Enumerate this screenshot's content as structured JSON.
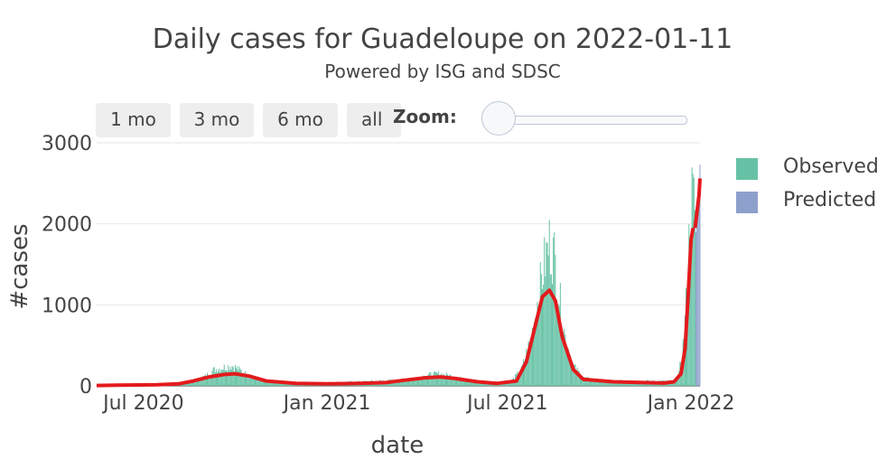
{
  "title": "Daily cases for Guadeloupe on 2022-01-11",
  "subtitle": "Powered by ISG and SDSC",
  "range_selector": {
    "buttons": [
      "1 mo",
      "3 mo",
      "6 mo",
      "all"
    ],
    "zoom_label": "Zoom:"
  },
  "legend": [
    {
      "label": "Observed",
      "color": "#66c2a5"
    },
    {
      "label": "Predicted",
      "color": "#8da0cb"
    }
  ],
  "chart_data": {
    "type": "bar",
    "xlabel": "date",
    "ylabel": "#cases",
    "x_range": [
      "2020-05-15",
      "2022-01-10"
    ],
    "ylim": [
      0,
      3000
    ],
    "yticks": [
      0,
      1000,
      2000,
      3000
    ],
    "xticks": [
      {
        "date": "2020-07-01",
        "label": "Jul 2020"
      },
      {
        "date": "2021-01-01",
        "label": "Jan 2021"
      },
      {
        "date": "2021-07-01",
        "label": "Jul 2021"
      },
      {
        "date": "2022-01-01",
        "label": "Jan 2022"
      }
    ],
    "grid": true,
    "legend_position": "right",
    "colors": {
      "observed": "#66c2a5",
      "predicted": "#8da0cb",
      "smoothed_line": "#e31a1c"
    },
    "observed_anchors": [
      [
        "2020-05-15",
        5
      ],
      [
        "2020-07-01",
        10
      ],
      [
        "2020-08-01",
        30
      ],
      [
        "2020-08-20",
        60
      ],
      [
        "2020-09-01",
        120
      ],
      [
        "2020-09-10",
        200
      ],
      [
        "2020-09-20",
        230
      ],
      [
        "2020-09-28",
        250
      ],
      [
        "2020-10-05",
        200
      ],
      [
        "2020-10-15",
        120
      ],
      [
        "2020-11-01",
        60
      ],
      [
        "2020-12-01",
        40
      ],
      [
        "2021-01-01",
        40
      ],
      [
        "2021-02-01",
        50
      ],
      [
        "2021-02-20",
        60
      ],
      [
        "2021-03-15",
        70
      ],
      [
        "2021-04-01",
        100
      ],
      [
        "2021-04-15",
        140
      ],
      [
        "2021-04-25",
        150
      ],
      [
        "2021-05-10",
        110
      ],
      [
        "2021-05-25",
        60
      ],
      [
        "2021-06-15",
        40
      ],
      [
        "2021-07-05",
        60
      ],
      [
        "2021-07-15",
        200
      ],
      [
        "2021-07-25",
        600
      ],
      [
        "2021-08-01",
        1100
      ],
      [
        "2021-08-07",
        1500
      ],
      [
        "2021-08-12",
        1750
      ],
      [
        "2021-08-17",
        1600
      ],
      [
        "2021-08-22",
        1100
      ],
      [
        "2021-08-28",
        600
      ],
      [
        "2021-09-05",
        250
      ],
      [
        "2021-09-15",
        100
      ],
      [
        "2021-10-01",
        60
      ],
      [
        "2021-11-15",
        60
      ],
      [
        "2021-12-15",
        60
      ],
      [
        "2021-12-20",
        150
      ],
      [
        "2021-12-25",
        600
      ],
      [
        "2021-12-28",
        1200
      ],
      [
        "2021-12-31",
        2000
      ],
      [
        "2022-01-02",
        2300
      ],
      [
        "2022-01-05",
        2200
      ]
    ],
    "predicted": [
      [
        "2022-01-06",
        1900
      ],
      [
        "2022-01-07",
        2100
      ],
      [
        "2022-01-08",
        2300
      ],
      [
        "2022-01-09",
        2500
      ],
      [
        "2022-01-10",
        2730
      ]
    ],
    "smoothed": [
      [
        "2020-05-15",
        5
      ],
      [
        "2020-06-15",
        10
      ],
      [
        "2020-07-15",
        15
      ],
      [
        "2020-08-05",
        25
      ],
      [
        "2020-08-20",
        60
      ],
      [
        "2020-09-05",
        110
      ],
      [
        "2020-09-20",
        140
      ],
      [
        "2020-10-01",
        150
      ],
      [
        "2020-10-15",
        120
      ],
      [
        "2020-11-01",
        60
      ],
      [
        "2020-12-01",
        30
      ],
      [
        "2021-01-01",
        25
      ],
      [
        "2021-02-01",
        30
      ],
      [
        "2021-03-01",
        40
      ],
      [
        "2021-03-20",
        70
      ],
      [
        "2021-04-10",
        100
      ],
      [
        "2021-04-25",
        110
      ],
      [
        "2021-05-10",
        90
      ],
      [
        "2021-06-01",
        50
      ],
      [
        "2021-06-20",
        30
      ],
      [
        "2021-07-10",
        60
      ],
      [
        "2021-07-20",
        300
      ],
      [
        "2021-07-28",
        700
      ],
      [
        "2021-08-05",
        1100
      ],
      [
        "2021-08-12",
        1180
      ],
      [
        "2021-08-18",
        1050
      ],
      [
        "2021-08-25",
        600
      ],
      [
        "2021-09-05",
        200
      ],
      [
        "2021-09-15",
        80
      ],
      [
        "2021-10-15",
        50
      ],
      [
        "2021-11-15",
        40
      ],
      [
        "2021-12-05",
        35
      ],
      [
        "2021-12-15",
        50
      ],
      [
        "2021-12-22",
        150
      ],
      [
        "2021-12-26",
        450
      ],
      [
        "2021-12-29",
        1100
      ],
      [
        "2022-01-01",
        1800
      ],
      [
        "2022-01-03",
        1950
      ]
    ],
    "smoothed_predicted": [
      [
        "2022-01-05",
        1950
      ],
      [
        "2022-01-07",
        2150
      ],
      [
        "2022-01-09",
        2350
      ],
      [
        "2022-01-10",
        2560
      ]
    ]
  }
}
